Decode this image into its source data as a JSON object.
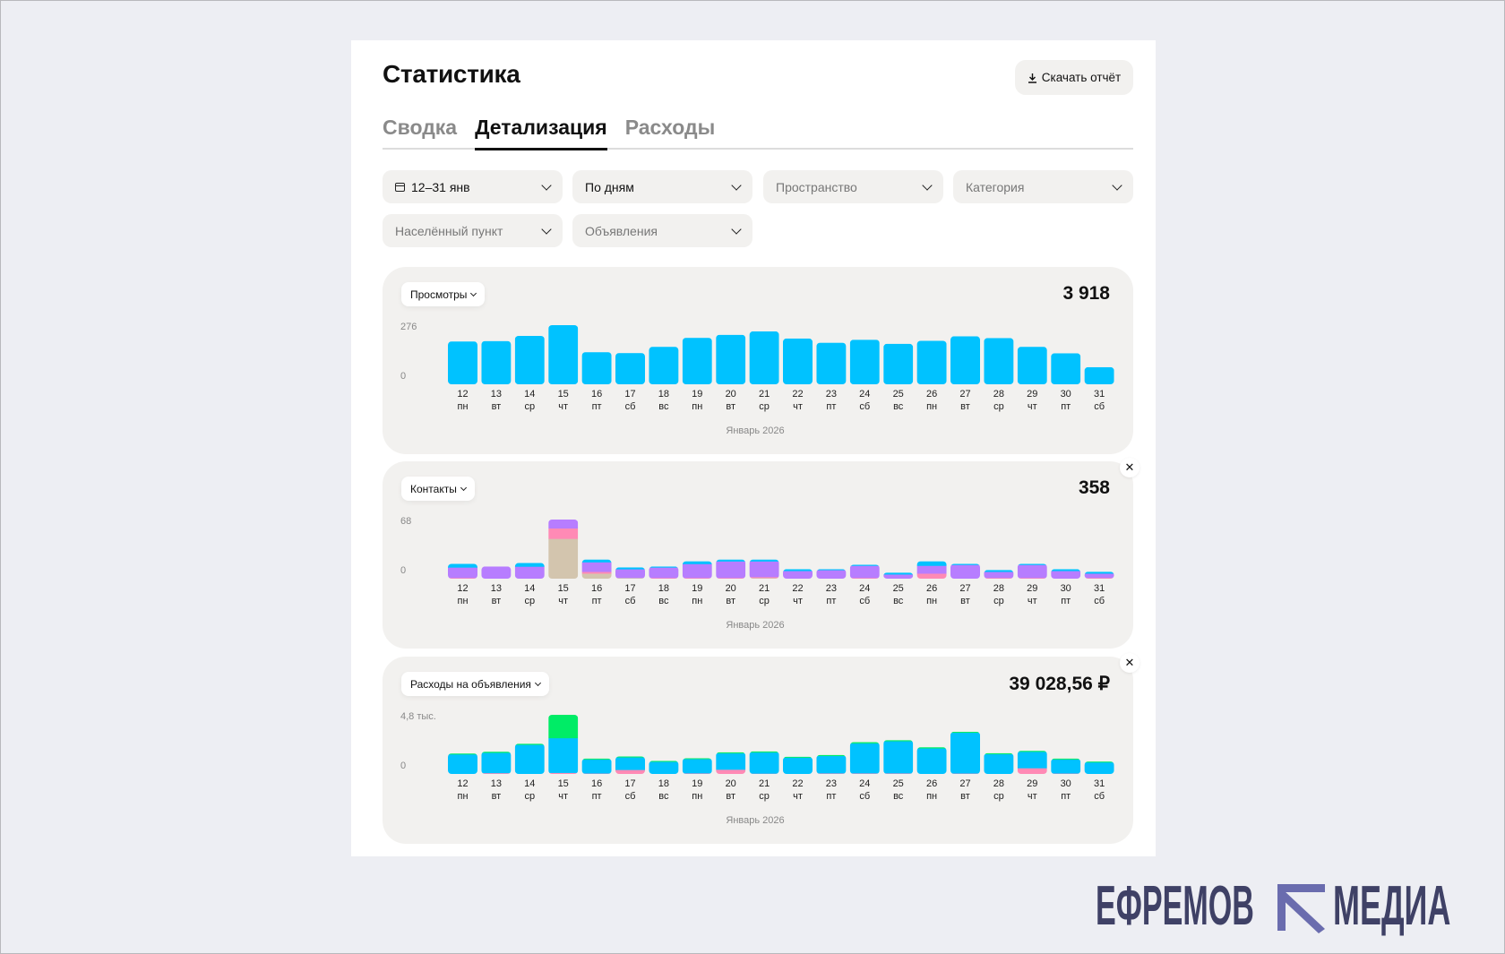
{
  "header": {
    "title": "Статистика",
    "download_label": "Скачать отчёт",
    "download_icon": "download-icon"
  },
  "tabs": [
    {
      "label": "Сводка",
      "active": false
    },
    {
      "label": "Детализация",
      "active": true
    },
    {
      "label": "Расходы",
      "active": false
    }
  ],
  "filters": [
    {
      "value": "12–31 янв",
      "placeholder": false,
      "icon": "calendar-icon"
    },
    {
      "value": "По дням",
      "placeholder": false
    },
    {
      "value": "Пространство",
      "placeholder": true
    },
    {
      "value": "Категория",
      "placeholder": true
    },
    {
      "value": "Населённый пункт",
      "placeholder": true
    },
    {
      "value": "Объявления",
      "placeholder": true
    }
  ],
  "colors": {
    "cyan": "#00c2ff",
    "purple": "#b77dff",
    "pink": "#ff8ab5",
    "beige": "#d3c5ae",
    "green": "#00ec66",
    "panel": "#f2f1ef",
    "background": "#edeef3"
  },
  "chart_data": [
    {
      "type": "bar",
      "metric": "Просмотры",
      "total": "3 918",
      "ymax_label": "276",
      "yzero_label": "0",
      "xlabel": "Январь 2026",
      "categories": [
        "12",
        "13",
        "14",
        "15",
        "16",
        "17",
        "18",
        "19",
        "20",
        "21",
        "22",
        "23",
        "24",
        "25",
        "26",
        "27",
        "28",
        "29",
        "30",
        "31"
      ],
      "weekdays": [
        "пн",
        "вт",
        "ср",
        "чт",
        "пт",
        "сб",
        "вс",
        "пн",
        "вт",
        "ср",
        "чт",
        "пт",
        "сб",
        "вс",
        "пн",
        "вт",
        "ср",
        "чт",
        "пт",
        "сб"
      ],
      "ylim": [
        0,
        276
      ],
      "series": [
        {
          "color": "cyan",
          "values": [
            200,
            202,
            226,
            276,
            150,
            146,
            175,
            217,
            231,
            247,
            214,
            194,
            208,
            189,
            203,
            224,
            216,
            175,
            145,
            80
          ]
        }
      ]
    },
    {
      "type": "bar",
      "stacked": true,
      "metric": "Контакты",
      "total": "358",
      "ymax_label": "68",
      "yzero_label": "0",
      "xlabel": "Январь 2026",
      "closable": true,
      "categories": [
        "12",
        "13",
        "14",
        "15",
        "16",
        "17",
        "18",
        "19",
        "20",
        "21",
        "22",
        "23",
        "24",
        "25",
        "26",
        "27",
        "28",
        "29",
        "30",
        "31"
      ],
      "weekdays": [
        "пн",
        "вт",
        "ср",
        "чт",
        "пт",
        "сб",
        "вс",
        "пн",
        "вт",
        "ср",
        "чт",
        "пт",
        "сб",
        "вс",
        "пн",
        "вт",
        "ср",
        "чт",
        "пт",
        "сб"
      ],
      "ylim": [
        0,
        68
      ],
      "series": [
        {
          "color": "beige",
          "values": [
            0,
            0,
            0,
            46,
            6,
            1,
            0,
            0,
            0,
            1,
            0,
            0,
            0,
            0,
            0,
            0,
            0,
            0,
            0,
            0
          ]
        },
        {
          "color": "pink",
          "values": [
            1,
            0,
            0,
            12,
            2,
            0,
            1,
            1,
            1,
            1,
            0,
            0,
            1,
            0,
            6,
            0,
            1,
            1,
            0,
            1
          ]
        },
        {
          "color": "purple",
          "values": [
            12,
            14,
            14,
            10,
            11,
            10,
            12,
            16,
            19,
            18,
            9,
            10,
            14,
            5,
            9,
            16,
            7,
            15,
            9,
            5
          ]
        },
        {
          "color": "cyan",
          "values": [
            4,
            0,
            4,
            0,
            3,
            2,
            1,
            3,
            2,
            2,
            2,
            1,
            1,
            2,
            5,
            1,
            2,
            1,
            2,
            2
          ]
        }
      ]
    },
    {
      "type": "bar",
      "stacked": true,
      "metric": "Расходы на объявления",
      "total": "39 028,56 ₽",
      "ymax_label": "4,8 тыс.",
      "yzero_label": "0",
      "xlabel": "Январь 2026",
      "closable": true,
      "categories": [
        "12",
        "13",
        "14",
        "15",
        "16",
        "17",
        "18",
        "19",
        "20",
        "21",
        "22",
        "23",
        "24",
        "25",
        "26",
        "27",
        "28",
        "29",
        "30",
        "31"
      ],
      "weekdays": [
        "пн",
        "вт",
        "ср",
        "чт",
        "пт",
        "сб",
        "вс",
        "пн",
        "вт",
        "ср",
        "чт",
        "пт",
        "сб",
        "вс",
        "пн",
        "вт",
        "ср",
        "чт",
        "пт",
        "сб"
      ],
      "ylim": [
        0,
        4800
      ],
      "series": [
        {
          "color": "pink",
          "values": [
            0,
            80,
            0,
            100,
            50,
            340,
            0,
            60,
            360,
            40,
            0,
            60,
            60,
            60,
            0,
            50,
            0,
            480,
            50,
            0
          ]
        },
        {
          "color": "cyan",
          "values": [
            1600,
            1650,
            2380,
            2820,
            1140,
            1020,
            1000,
            1160,
            1330,
            1720,
            1340,
            1410,
            2440,
            2610,
            2090,
            3310.56,
            1620,
            1330,
            1140,
            950
          ]
        },
        {
          "color": "green",
          "values": [
            63,
            78,
            78,
            1880,
            63,
            62,
            60,
            57,
            70,
            72,
            58,
            72,
            79,
            77,
            79,
            68,
            67,
            70,
            63,
            62
          ]
        }
      ]
    }
  ],
  "watermark": {
    "text": "ЕФРЕМОВ МЕДИА"
  }
}
